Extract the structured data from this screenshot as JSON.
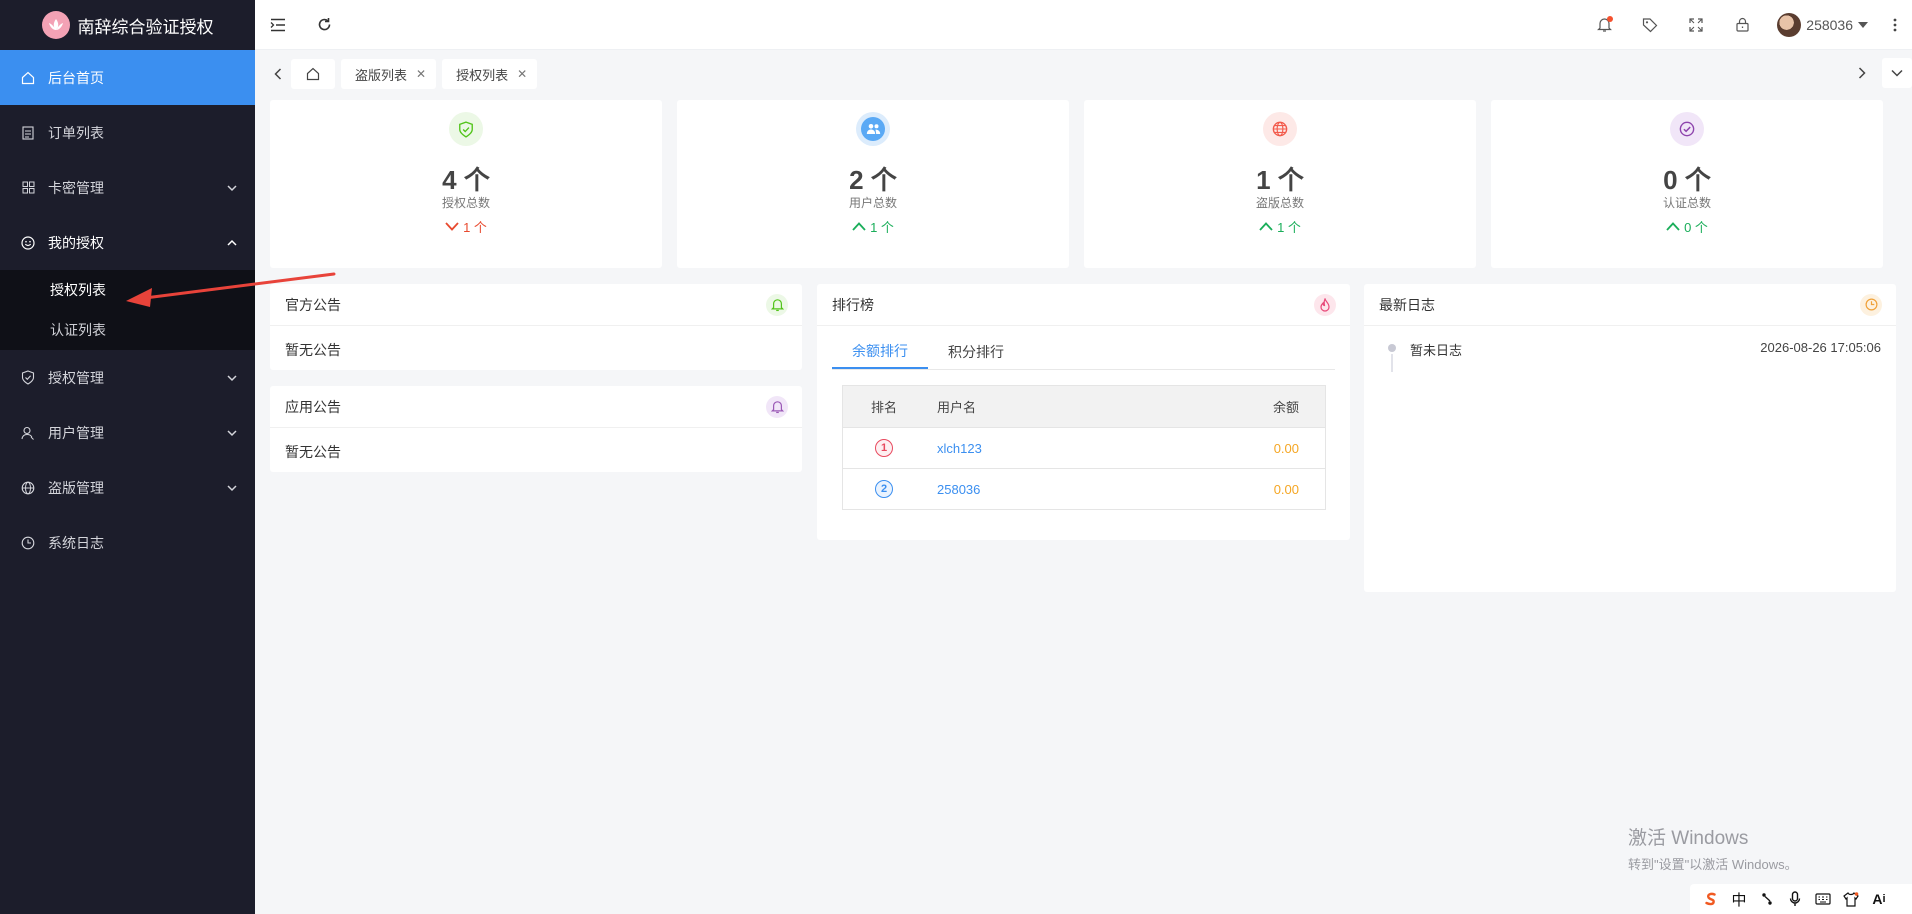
{
  "brand": {
    "name": "南辞综合验证授权"
  },
  "sidebar": {
    "items": [
      {
        "label": "后台首页",
        "icon": "home-icon",
        "active": true
      },
      {
        "label": "订单列表",
        "icon": "document-icon"
      },
      {
        "label": "卡密管理",
        "icon": "grid-icon",
        "expandable": true
      },
      {
        "label": "我的授权",
        "icon": "smile-icon",
        "expandable": true,
        "expanded": true,
        "children": [
          {
            "label": "授权列表"
          },
          {
            "label": "认证列表"
          }
        ]
      },
      {
        "label": "授权管理",
        "icon": "shield-check-icon",
        "expandable": true
      },
      {
        "label": "用户管理",
        "icon": "user-icon",
        "expandable": true
      },
      {
        "label": "盗版管理",
        "icon": "globe-icon",
        "expandable": true
      },
      {
        "label": "系统日志",
        "icon": "clock-icon"
      }
    ]
  },
  "header": {
    "username": "258036",
    "notification_dot_color": "#f5512e"
  },
  "tabs": [
    {
      "label": "盗版列表"
    },
    {
      "label": "授权列表"
    }
  ],
  "stats": [
    {
      "value": "4 个",
      "label": "授权总数",
      "trend": "1 个",
      "trend_dir": "down",
      "trend_color": "#e84a2f",
      "icon": "shield-check-icon",
      "icon_color": "#52c41a",
      "icon_bg": "#ecf8e6"
    },
    {
      "value": "2 个",
      "label": "用户总数",
      "trend": "1 个",
      "trend_dir": "up",
      "trend_color": "#1aae5a",
      "icon": "users-icon",
      "icon_color": "#ffffff",
      "icon_bg": "#5aa9f5"
    },
    {
      "value": "1 个",
      "label": "盗版总数",
      "trend": "1 个",
      "trend_dir": "up",
      "trend_color": "#1aae5a",
      "icon": "globe-icon",
      "icon_color": "#f25a4b",
      "icon_bg": "#fde9e7"
    },
    {
      "value": "0 个",
      "label": "认证总数",
      "trend": "0 个",
      "trend_dir": "up",
      "trend_color": "#1aae5a",
      "icon": "check-circle-icon",
      "icon_color": "#8e44ad",
      "icon_bg": "#f1e6f8"
    }
  ],
  "announcements": [
    {
      "title": "官方公告",
      "body": "暂无公告",
      "icon": "bell-icon",
      "icon_color": "#52c41a"
    },
    {
      "title": "应用公告",
      "body": "暂无公告",
      "icon": "bell-icon",
      "icon_color": "#9b59b6"
    }
  ],
  "ranking": {
    "title": "排行榜",
    "tabs": [
      "余额排行",
      "积分排行"
    ],
    "columns": [
      "排名",
      "用户名",
      "余额"
    ],
    "rows": [
      {
        "rank": "1",
        "username": "xlch123",
        "balance": "0.00",
        "badge_color": "#e84a5f"
      },
      {
        "rank": "2",
        "username": "258036",
        "balance": "0.00",
        "badge_color": "#3b8ff0"
      }
    ]
  },
  "logs": {
    "title": "最新日志",
    "items": [
      {
        "text": "暂未日志",
        "time": "2026-08-26 17:05:06"
      }
    ]
  },
  "watermark": {
    "line1": "激活 Windows",
    "line2": "转到\"设置\"以激活 Windows。"
  },
  "tray": {
    "ime": "中"
  }
}
